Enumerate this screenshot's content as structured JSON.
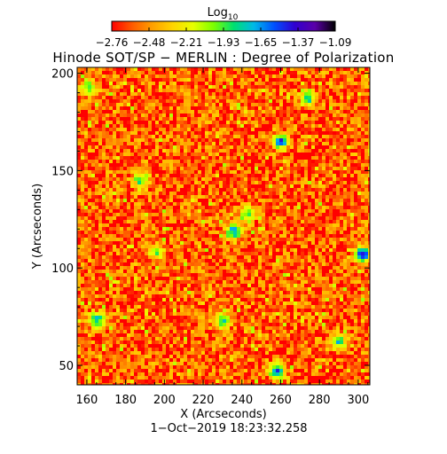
{
  "chart_data": {
    "type": "heatmap",
    "title": "Hinode SOT/SP − MERLIN : Degree of Polarization",
    "xlabel": "X (Arcseconds)",
    "ylabel": "Y (Arcseconds)",
    "xlim": [
      155,
      306
    ],
    "ylim": [
      40,
      203
    ],
    "xticks": [
      "160",
      "180",
      "200",
      "220",
      "240",
      "260",
      "280",
      "300"
    ],
    "yticks": [
      "50",
      "100",
      "150",
      "200"
    ],
    "colorbar": {
      "label_base": "Log",
      "label_sub": "10",
      "ticks": [
        "−2.76",
        "−2.48",
        "−2.21",
        "−1.93",
        "−1.65",
        "−1.37",
        "−1.09"
      ],
      "range": [
        -2.76,
        -1.09
      ],
      "colors": [
        "#ff0000",
        "#ff5a00",
        "#ffa000",
        "#ffd400",
        "#e8ff00",
        "#7dff00",
        "#00e070",
        "#00b8e8",
        "#0050ff",
        "#3000d0",
        "#5a00a8",
        "#000000"
      ]
    },
    "background_level": -2.6,
    "enhanced_regions": [
      {
        "x": 236,
        "y": 119,
        "level": -1.6
      },
      {
        "x": 260,
        "y": 165,
        "level": -1.55
      },
      {
        "x": 188,
        "y": 145,
        "level": -1.9
      },
      {
        "x": 165,
        "y": 73,
        "level": -1.7
      },
      {
        "x": 230,
        "y": 73,
        "level": -1.8
      },
      {
        "x": 258,
        "y": 47,
        "level": -1.55
      },
      {
        "x": 302,
        "y": 107,
        "level": -1.4
      },
      {
        "x": 161,
        "y": 193,
        "level": -1.9
      },
      {
        "x": 274,
        "y": 187,
        "level": -1.8
      },
      {
        "x": 196,
        "y": 108,
        "level": -2.0
      },
      {
        "x": 290,
        "y": 62,
        "level": -1.8
      },
      {
        "x": 243,
        "y": 128,
        "level": -1.9
      }
    ]
  },
  "footer": {
    "timestamp": "1−Oct−2019  18:23:32.258"
  }
}
